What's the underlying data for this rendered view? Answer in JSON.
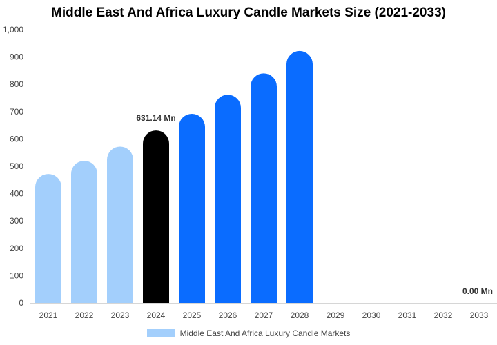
{
  "chart_data": {
    "type": "bar",
    "title": "Middle East And Africa Luxury Candle Markets Size (2021-2033)",
    "xlabel": "",
    "ylabel": "",
    "ylim": [
      0,
      1000
    ],
    "yticks": [
      "0",
      "100",
      "200",
      "300",
      "400",
      "500",
      "600",
      "700",
      "800",
      "900",
      "1,000"
    ],
    "categories": [
      "2021",
      "2022",
      "2023",
      "2024",
      "2025",
      "2026",
      "2027",
      "2028",
      "2029",
      "2030",
      "2031",
      "2032",
      "2033"
    ],
    "series": [
      {
        "name": "Middle East And Africa Luxury Candle Markets",
        "values": [
          472,
          520,
          572,
          631.14,
          692,
          762,
          840,
          922,
          0,
          0,
          0,
          0,
          0
        ]
      }
    ],
    "annotations": [
      {
        "category": "2024",
        "text": "631.14 Mn"
      },
      {
        "category": "2033",
        "text": "0.00 Mn"
      }
    ],
    "bar_colors": [
      "#a3cffc",
      "#a3cffc",
      "#a3cffc",
      "#000000",
      "#0a6cff",
      "#0a6cff",
      "#0a6cff",
      "#0a6cff",
      "#0a6cff",
      "#0a6cff",
      "#0a6cff",
      "#0a6cff",
      "#0a6cff"
    ],
    "legend_color": "#a3cffc",
    "legend_position": "bottom"
  }
}
